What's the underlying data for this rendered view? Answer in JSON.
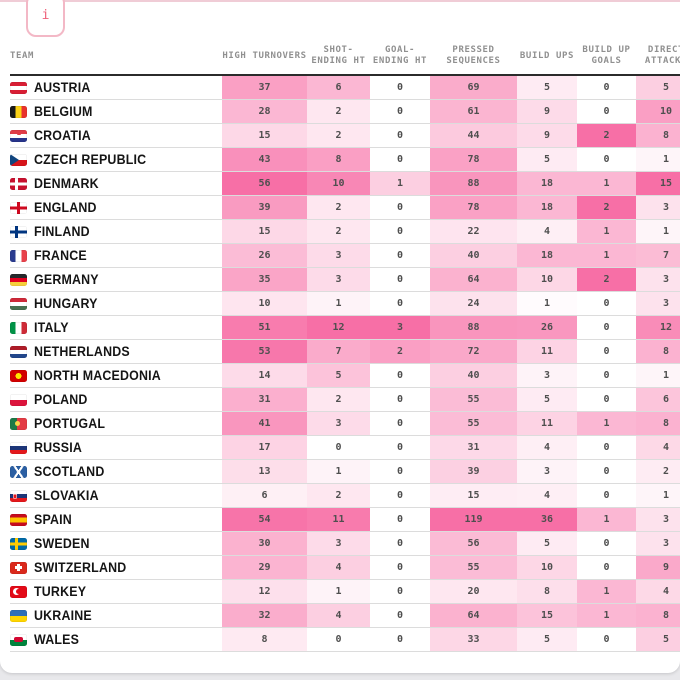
{
  "info_button": {
    "label": "i"
  },
  "colors": {
    "heat_min": "#ffffff",
    "heat_max": "#f76fa6",
    "accent_border": "#f3b8c6",
    "accent_text": "#ee6079"
  },
  "table": {
    "header": {
      "team": "TEAM",
      "cols": [
        "HIGH TURNOVERS",
        "SHOT-\nENDING HT",
        "GOAL-\nENDING HT",
        "PRESSED\nSEQUENCES",
        "BUILD UPS",
        "BUILD UP\nGOALS",
        "DIRECT\nATTACKS"
      ]
    }
  },
  "chart_data": {
    "type": "heatmap",
    "title": "",
    "legend_position": "none",
    "columns": [
      "HIGH TURNOVERS",
      "SHOT-ENDING HT",
      "GOAL-ENDING HT",
      "PRESSED SEQUENCES",
      "BUILD UPS",
      "BUILD UP GOALS",
      "DIRECT ATTACKS"
    ],
    "color_scale": {
      "min": "#ffffff",
      "max": "#f76fa6",
      "normalized": "per-column-max"
    },
    "rows": [
      {
        "team": "AUSTRIA",
        "flag": "austria",
        "values": [
          37,
          6,
          0,
          69,
          5,
          0,
          5
        ]
      },
      {
        "team": "BELGIUM",
        "flag": "belgium",
        "values": [
          28,
          2,
          0,
          61,
          9,
          0,
          10
        ]
      },
      {
        "team": "CROATIA",
        "flag": "croatia",
        "values": [
          15,
          2,
          0,
          44,
          9,
          2,
          8
        ]
      },
      {
        "team": "CZECH REPUBLIC",
        "flag": "czech-republic",
        "values": [
          43,
          8,
          0,
          78,
          5,
          0,
          1
        ]
      },
      {
        "team": "DENMARK",
        "flag": "denmark",
        "values": [
          56,
          10,
          1,
          88,
          18,
          1,
          15
        ]
      },
      {
        "team": "ENGLAND",
        "flag": "england",
        "values": [
          39,
          2,
          0,
          78,
          18,
          2,
          3
        ]
      },
      {
        "team": "FINLAND",
        "flag": "finland",
        "values": [
          15,
          2,
          0,
          22,
          4,
          1,
          1
        ]
      },
      {
        "team": "FRANCE",
        "flag": "france",
        "values": [
          26,
          3,
          0,
          40,
          18,
          1,
          7
        ]
      },
      {
        "team": "GERMANY",
        "flag": "germany",
        "values": [
          35,
          3,
          0,
          64,
          10,
          2,
          3
        ]
      },
      {
        "team": "HUNGARY",
        "flag": "hungary",
        "values": [
          10,
          1,
          0,
          24,
          1,
          0,
          3
        ]
      },
      {
        "team": "ITALY",
        "flag": "italy",
        "values": [
          51,
          12,
          3,
          88,
          26,
          0,
          12
        ]
      },
      {
        "team": "NETHERLANDS",
        "flag": "netherlands",
        "values": [
          53,
          7,
          2,
          72,
          11,
          0,
          8
        ]
      },
      {
        "team": "NORTH MACEDONIA",
        "flag": "north-macedonia",
        "values": [
          14,
          5,
          0,
          40,
          3,
          0,
          1
        ]
      },
      {
        "team": "POLAND",
        "flag": "poland",
        "values": [
          31,
          2,
          0,
          55,
          5,
          0,
          6
        ]
      },
      {
        "team": "PORTUGAL",
        "flag": "portugal",
        "values": [
          41,
          3,
          0,
          55,
          11,
          1,
          8
        ]
      },
      {
        "team": "RUSSIA",
        "flag": "russia",
        "values": [
          17,
          0,
          0,
          31,
          4,
          0,
          4
        ]
      },
      {
        "team": "SCOTLAND",
        "flag": "scotland",
        "values": [
          13,
          1,
          0,
          39,
          3,
          0,
          2
        ]
      },
      {
        "team": "SLOVAKIA",
        "flag": "slovakia",
        "values": [
          6,
          2,
          0,
          15,
          4,
          0,
          1
        ]
      },
      {
        "team": "SPAIN",
        "flag": "spain",
        "values": [
          54,
          11,
          0,
          119,
          36,
          1,
          3
        ]
      },
      {
        "team": "SWEDEN",
        "flag": "sweden",
        "values": [
          30,
          3,
          0,
          56,
          5,
          0,
          3
        ]
      },
      {
        "team": "SWITZERLAND",
        "flag": "switzerland",
        "values": [
          29,
          4,
          0,
          55,
          10,
          0,
          9
        ]
      },
      {
        "team": "TURKEY",
        "flag": "turkey",
        "values": [
          12,
          1,
          0,
          20,
          8,
          1,
          4
        ]
      },
      {
        "team": "UKRAINE",
        "flag": "ukraine",
        "values": [
          32,
          4,
          0,
          64,
          15,
          1,
          8
        ]
      },
      {
        "team": "WALES",
        "flag": "wales",
        "values": [
          8,
          0,
          0,
          33,
          5,
          0,
          5
        ]
      }
    ]
  }
}
